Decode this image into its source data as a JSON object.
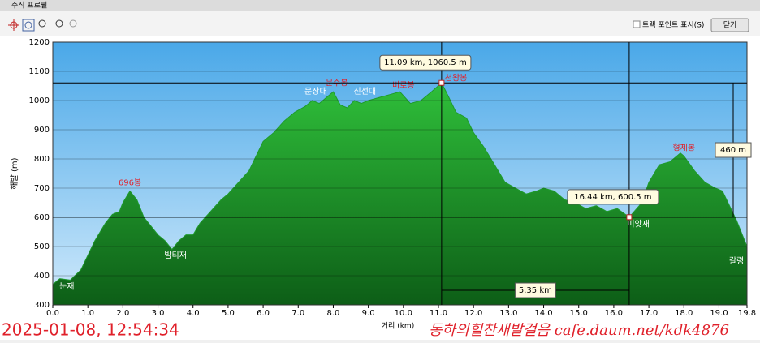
{
  "window": {
    "title": "수직 프로필",
    "checkbox_label": "트랙 포인트 표시(S)",
    "close_button": "닫기"
  },
  "overlay": {
    "timestamp": "2025-01-08, 12:54:34",
    "watermark": "동하의힐찬새발걸음 cafe.daum.net/kdk4876"
  },
  "chart_data": {
    "type": "area",
    "x_label": "거리 (km)",
    "y_label": "해발 (m)",
    "xlim": [
      0,
      19.8
    ],
    "ylim": [
      300,
      1200
    ],
    "xticks": [
      {
        "value": 0,
        "label": "0.0"
      },
      {
        "value": 1,
        "label": "1.0"
      },
      {
        "value": 2,
        "label": "2.0"
      },
      {
        "value": 3,
        "label": "3.0"
      },
      {
        "value": 4,
        "label": "4.0"
      },
      {
        "value": 5,
        "label": "5.0"
      },
      {
        "value": 6,
        "label": "6.0"
      },
      {
        "value": 7,
        "label": "7.0"
      },
      {
        "value": 8,
        "label": "8.0"
      },
      {
        "value": 9,
        "label": "9.0"
      },
      {
        "value": 10,
        "label": "10.0"
      },
      {
        "value": 11,
        "label": "11.0"
      },
      {
        "value": 12,
        "label": "12.0"
      },
      {
        "value": 13,
        "label": "13.0"
      },
      {
        "value": 14,
        "label": "14.0"
      },
      {
        "value": 15,
        "label": "15.0"
      },
      {
        "value": 16,
        "label": "16.0"
      },
      {
        "value": 17,
        "label": "17.0"
      },
      {
        "value": 18,
        "label": "18.0"
      },
      {
        "value": 19,
        "label": "19.0"
      },
      19.8
    ],
    "yticks": [
      300,
      400,
      500,
      600,
      700,
      800,
      900,
      1000,
      1100,
      1200
    ],
    "grid": true,
    "color": "#1f9a2c",
    "x": [
      0,
      0.2,
      0.5,
      0.8,
      1,
      1.2,
      1.5,
      1.7,
      1.9,
      2,
      2.2,
      2.4,
      2.6,
      2.8,
      3,
      3.2,
      3.4,
      3.6,
      3.8,
      4,
      4.2,
      4.5,
      4.8,
      5,
      5.3,
      5.6,
      5.8,
      6,
      6.3,
      6.6,
      6.9,
      7.2,
      7.4,
      7.6,
      7.8,
      8,
      8.2,
      8.4,
      8.6,
      8.8,
      9,
      9.3,
      9.6,
      9.9,
      10.2,
      10.5,
      10.8,
      11.09,
      11.3,
      11.5,
      11.8,
      12,
      12.3,
      12.6,
      12.9,
      13.2,
      13.5,
      13.8,
      14,
      14.3,
      14.6,
      14.9,
      15.2,
      15.5,
      15.8,
      16.1,
      16.44,
      16.8,
      17,
      17.3,
      17.6,
      17.9,
      18,
      18.3,
      18.6,
      18.9,
      19.1,
      19.3,
      19.5,
      19.8
    ],
    "values": [
      370,
      390,
      385,
      420,
      470,
      520,
      580,
      610,
      620,
      650,
      690,
      660,
      600,
      570,
      540,
      520,
      490,
      520,
      540,
      540,
      580,
      620,
      660,
      680,
      720,
      760,
      810,
      860,
      890,
      930,
      960,
      980,
      1000,
      990,
      1010,
      1030,
      985,
      975,
      1000,
      990,
      1000,
      1010,
      1020,
      1030,
      990,
      1000,
      1030,
      1060.5,
      1010,
      960,
      940,
      890,
      840,
      780,
      720,
      700,
      680,
      690,
      700,
      690,
      660,
      650,
      630,
      640,
      620,
      630,
      600.5,
      650,
      720,
      780,
      790,
      820,
      810,
      760,
      720,
      700,
      690,
      640,
      590,
      500
    ],
    "markers": [
      {
        "x": 11.09,
        "y": 1060.5,
        "label": "11.09 km, 1060.5 m"
      },
      {
        "x": 16.44,
        "y": 600.5,
        "label": "16.44 km, 600.5 m"
      }
    ],
    "measures": {
      "height": "460 m",
      "distance": "5.35 km"
    },
    "annotations": [
      {
        "text": "눈재",
        "x": 0.4,
        "y": 362,
        "color": "#ffffff"
      },
      {
        "text": "696봉",
        "x": 2.2,
        "y": 718,
        "color": "#e0202a"
      },
      {
        "text": "밤티재",
        "x": 3.5,
        "y": 470,
        "color": "#ffffff"
      },
      {
        "text": "문장대",
        "x": 7.5,
        "y": 1030,
        "color": "#ffffff"
      },
      {
        "text": "문수봉",
        "x": 8.1,
        "y": 1060,
        "color": "#e0202a"
      },
      {
        "text": "신선대",
        "x": 8.9,
        "y": 1030,
        "color": "#ffffff"
      },
      {
        "text": "비로봉",
        "x": 10,
        "y": 1052,
        "color": "#e0202a"
      },
      {
        "text": "천왕봉",
        "x": 11.5,
        "y": 1077,
        "color": "#e0202a"
      },
      {
        "text": "피앗재",
        "x": 16.7,
        "y": 577,
        "color": "#ffffff"
      },
      {
        "text": "형제봉",
        "x": 18,
        "y": 838,
        "color": "#e0202a"
      },
      {
        "text": "갈령",
        "x": 19.5,
        "y": 450,
        "color": "#ffffff"
      }
    ]
  }
}
